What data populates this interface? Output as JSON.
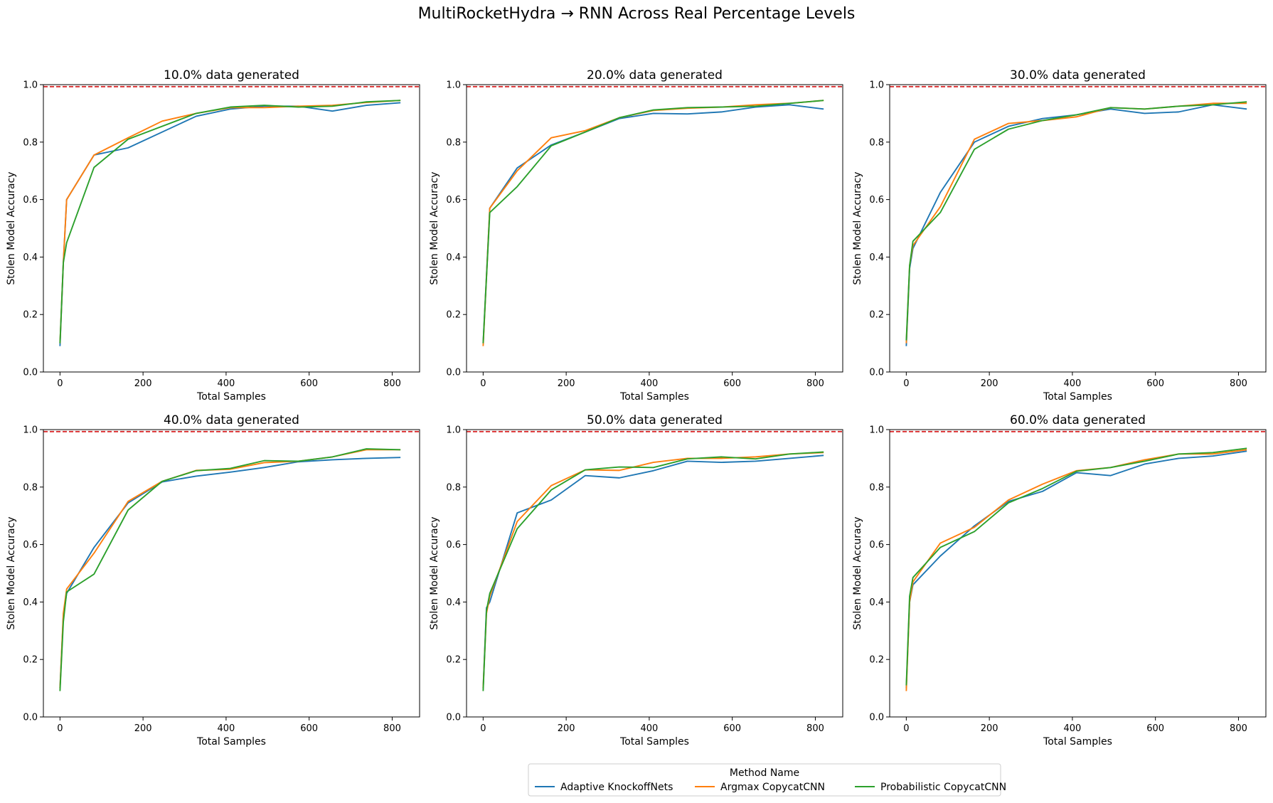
{
  "title": "MultiRocketHydra → RNN Across Real Percentage Levels",
  "colors": {
    "Adaptive KnockoffNets": "#1f77b4",
    "Argmax CopycatCNN": "#ff7f0e",
    "Probabilistic CopycatCNN": "#2ca02c",
    "reference_line": "#d62728"
  },
  "legend": {
    "title": "Method Name",
    "entries": [
      "Adaptive KnockoffNets",
      "Argmax CopycatCNN",
      "Probabilistic CopycatCNN"
    ],
    "placement": "bottom-center"
  },
  "chart_data": [
    {
      "type": "line",
      "title": "10.0% data generated",
      "xlabel": "Total Samples",
      "ylabel": "Stolen Model Accuracy",
      "xlim": [
        -40,
        866
      ],
      "ylim": [
        0,
        1.0
      ],
      "xticks": [
        0,
        200,
        400,
        600,
        800
      ],
      "yticks": [
        0.0,
        0.2,
        0.4,
        0.6,
        0.8,
        1.0
      ],
      "reference_y": 0.993,
      "series": [
        {
          "name": "Adaptive KnockoffNets",
          "x": [
            0,
            8,
            16,
            82,
            164,
            328,
            410,
            492,
            574,
            656,
            738,
            820
          ],
          "y": [
            0.09,
            0.38,
            0.6,
            0.755,
            0.78,
            0.89,
            0.915,
            0.925,
            0.925,
            0.908,
            0.928,
            0.937
          ]
        },
        {
          "name": "Argmax CopycatCNN",
          "x": [
            0,
            8,
            16,
            82,
            164,
            246,
            328,
            410,
            492,
            574,
            656,
            738,
            820
          ],
          "y": [
            0.1,
            0.38,
            0.6,
            0.755,
            0.815,
            0.873,
            0.9,
            0.92,
            0.92,
            0.925,
            0.928,
            0.938,
            0.945
          ]
        },
        {
          "name": "Probabilistic CopycatCNN",
          "x": [
            0,
            8,
            16,
            82,
            164,
            328,
            410,
            492,
            574,
            656,
            738,
            820
          ],
          "y": [
            0.1,
            0.38,
            0.45,
            0.712,
            0.81,
            0.9,
            0.922,
            0.928,
            0.922,
            0.925,
            0.94,
            0.945
          ]
        }
      ]
    },
    {
      "type": "line",
      "title": "20.0% data generated",
      "xlabel": "Total Samples",
      "ylabel": "Stolen Model Accuracy",
      "xlim": [
        -40,
        866
      ],
      "ylim": [
        0,
        1.0
      ],
      "xticks": [
        0,
        200,
        400,
        600,
        800
      ],
      "yticks": [
        0.0,
        0.2,
        0.4,
        0.6,
        0.8,
        1.0
      ],
      "reference_y": 0.993,
      "series": [
        {
          "name": "Adaptive KnockoffNets",
          "x": [
            0,
            16,
            82,
            164,
            246,
            328,
            410,
            492,
            574,
            656,
            738,
            820
          ],
          "y": [
            0.1,
            0.57,
            0.71,
            0.79,
            0.835,
            0.882,
            0.9,
            0.898,
            0.905,
            0.922,
            0.93,
            0.915
          ]
        },
        {
          "name": "Argmax CopycatCNN",
          "x": [
            0,
            16,
            82,
            164,
            246,
            328,
            410,
            492,
            574,
            656,
            738,
            820
          ],
          "y": [
            0.09,
            0.57,
            0.7,
            0.815,
            0.84,
            0.885,
            0.91,
            0.918,
            0.922,
            0.93,
            0.935,
            0.945
          ]
        },
        {
          "name": "Probabilistic CopycatCNN",
          "x": [
            0,
            16,
            82,
            164,
            246,
            328,
            410,
            492,
            574,
            656,
            738,
            820
          ],
          "y": [
            0.1,
            0.555,
            0.645,
            0.787,
            0.835,
            0.885,
            0.912,
            0.92,
            0.922,
            0.925,
            0.935,
            0.945
          ]
        }
      ]
    },
    {
      "type": "line",
      "title": "30.0% data generated",
      "xlabel": "Total Samples",
      "ylabel": "Stolen Model Accuracy",
      "xlim": [
        -40,
        866
      ],
      "ylim": [
        0,
        1.0
      ],
      "xticks": [
        0,
        200,
        400,
        600,
        800
      ],
      "yticks": [
        0.0,
        0.2,
        0.4,
        0.6,
        0.8,
        1.0
      ],
      "reference_y": 0.993,
      "series": [
        {
          "name": "Adaptive KnockoffNets",
          "x": [
            0,
            8,
            16,
            82,
            164,
            246,
            328,
            410,
            492,
            574,
            656,
            738,
            820
          ],
          "y": [
            0.09,
            0.36,
            0.43,
            0.625,
            0.8,
            0.855,
            0.882,
            0.895,
            0.915,
            0.9,
            0.905,
            0.93,
            0.915
          ]
        },
        {
          "name": "Argmax CopycatCNN",
          "x": [
            0,
            8,
            16,
            82,
            164,
            246,
            328,
            410,
            492,
            574,
            656,
            738,
            820
          ],
          "y": [
            0.1,
            0.37,
            0.44,
            0.575,
            0.81,
            0.865,
            0.875,
            0.888,
            0.92,
            0.915,
            0.925,
            0.935,
            0.935
          ]
        },
        {
          "name": "Probabilistic CopycatCNN",
          "x": [
            0,
            8,
            16,
            82,
            164,
            246,
            328,
            410,
            492,
            574,
            656,
            738,
            820
          ],
          "y": [
            0.11,
            0.37,
            0.455,
            0.555,
            0.775,
            0.845,
            0.875,
            0.895,
            0.92,
            0.915,
            0.925,
            0.93,
            0.94
          ]
        }
      ]
    },
    {
      "type": "line",
      "title": "40.0% data generated",
      "xlabel": "Total Samples",
      "ylabel": "Stolen Model Accuracy",
      "xlim": [
        -40,
        866
      ],
      "ylim": [
        0,
        1.0
      ],
      "xticks": [
        0,
        200,
        400,
        600,
        800
      ],
      "yticks": [
        0.0,
        0.2,
        0.4,
        0.6,
        0.8,
        1.0
      ],
      "reference_y": 0.993,
      "series": [
        {
          "name": "Adaptive KnockoffNets",
          "x": [
            0,
            8,
            16,
            82,
            164,
            246,
            328,
            410,
            492,
            574,
            656,
            738,
            820
          ],
          "y": [
            0.1,
            0.35,
            0.43,
            0.59,
            0.745,
            0.818,
            0.838,
            0.852,
            0.868,
            0.888,
            0.895,
            0.9,
            0.903
          ]
        },
        {
          "name": "Argmax CopycatCNN",
          "x": [
            0,
            8,
            16,
            82,
            164,
            246,
            328,
            410,
            492,
            574,
            656,
            738,
            820
          ],
          "y": [
            0.1,
            0.36,
            0.445,
            0.57,
            0.75,
            0.82,
            0.858,
            0.862,
            0.885,
            0.89,
            0.905,
            0.93,
            0.93
          ]
        },
        {
          "name": "Probabilistic CopycatCNN",
          "x": [
            0,
            8,
            16,
            82,
            164,
            246,
            328,
            410,
            492,
            574,
            656,
            738,
            820
          ],
          "y": [
            0.09,
            0.33,
            0.435,
            0.497,
            0.72,
            0.82,
            0.857,
            0.865,
            0.892,
            0.89,
            0.905,
            0.933,
            0.93
          ]
        }
      ]
    },
    {
      "type": "line",
      "title": "50.0% data generated",
      "xlabel": "Total Samples",
      "ylabel": "Stolen Model Accuracy",
      "xlim": [
        -40,
        866
      ],
      "ylim": [
        0,
        1.0
      ],
      "xticks": [
        0,
        200,
        400,
        600,
        800
      ],
      "yticks": [
        0.0,
        0.2,
        0.4,
        0.6,
        0.8,
        1.0
      ],
      "reference_y": 0.993,
      "series": [
        {
          "name": "Adaptive KnockoffNets",
          "x": [
            0,
            8,
            16,
            82,
            164,
            246,
            328,
            410,
            492,
            574,
            656,
            738,
            820
          ],
          "y": [
            0.1,
            0.38,
            0.4,
            0.71,
            0.755,
            0.84,
            0.832,
            0.857,
            0.89,
            0.886,
            0.89,
            0.9,
            0.91
          ]
        },
        {
          "name": "Argmax CopycatCNN",
          "x": [
            0,
            8,
            16,
            82,
            164,
            246,
            328,
            410,
            492,
            574,
            656,
            738,
            820
          ],
          "y": [
            0.1,
            0.36,
            0.42,
            0.68,
            0.805,
            0.86,
            0.858,
            0.886,
            0.9,
            0.9,
            0.905,
            0.915,
            0.92
          ]
        },
        {
          "name": "Probabilistic CopycatCNN",
          "x": [
            0,
            8,
            16,
            82,
            164,
            246,
            328,
            410,
            492,
            574,
            656,
            738,
            820
          ],
          "y": [
            0.09,
            0.37,
            0.43,
            0.655,
            0.79,
            0.86,
            0.87,
            0.868,
            0.898,
            0.905,
            0.898,
            0.915,
            0.922
          ]
        }
      ]
    },
    {
      "type": "line",
      "title": "60.0% data generated",
      "xlabel": "Total Samples",
      "ylabel": "Stolen Model Accuracy",
      "xlim": [
        -40,
        866
      ],
      "ylim": [
        0,
        1.0
      ],
      "xticks": [
        0,
        200,
        400,
        600,
        800
      ],
      "yticks": [
        0.0,
        0.2,
        0.4,
        0.6,
        0.8,
        1.0
      ],
      "reference_y": 0.993,
      "series": [
        {
          "name": "Adaptive KnockoffNets",
          "x": [
            0,
            8,
            16,
            82,
            164,
            246,
            328,
            410,
            492,
            574,
            656,
            738,
            820
          ],
          "y": [
            0.1,
            0.4,
            0.46,
            0.56,
            0.665,
            0.75,
            0.785,
            0.85,
            0.84,
            0.88,
            0.9,
            0.908,
            0.925
          ]
        },
        {
          "name": "Argmax CopycatCNN",
          "x": [
            0,
            8,
            16,
            82,
            164,
            246,
            328,
            410,
            492,
            574,
            656,
            738,
            820
          ],
          "y": [
            0.09,
            0.4,
            0.47,
            0.605,
            0.66,
            0.755,
            0.81,
            0.857,
            0.868,
            0.895,
            0.915,
            0.915,
            0.93
          ]
        },
        {
          "name": "Probabilistic CopycatCNN",
          "x": [
            0,
            8,
            16,
            82,
            164,
            246,
            328,
            410,
            492,
            574,
            656,
            738,
            820
          ],
          "y": [
            0.11,
            0.42,
            0.485,
            0.59,
            0.645,
            0.745,
            0.795,
            0.855,
            0.868,
            0.89,
            0.915,
            0.92,
            0.935
          ]
        }
      ]
    }
  ]
}
